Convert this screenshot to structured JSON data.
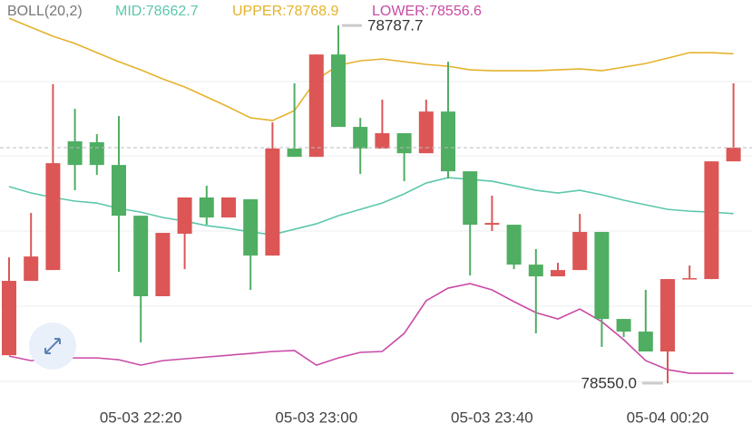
{
  "chart_data": {
    "type": "candlestick",
    "indicator": "BOLL(20,2)",
    "categories": [
      null,
      null,
      null,
      null,
      null,
      null,
      "05-03 22:20",
      null,
      null,
      null,
      null,
      null,
      null,
      null,
      "05-03 23:00",
      null,
      null,
      null,
      null,
      null,
      null,
      null,
      "05-03 23:40",
      null,
      null,
      null,
      null,
      null,
      null,
      null,
      "05-04 00:20",
      null,
      null,
      null
    ],
    "open": [
      78568.6,
      78618.0,
      78625.2,
      78710.7,
      78710.1,
      78695.0,
      78661.3,
      78607.8,
      78649.3,
      78673.4,
      78660.1,
      78672.2,
      78634.8,
      78705.9,
      78700.4,
      78768.4,
      78720.3,
      78705.9,
      78716.1,
      78702.8,
      78730.5,
      78690.8,
      78655.3,
      78655.3,
      78628.8,
      78621.0,
      78625.2,
      78650.5,
      78592.7,
      78584.3,
      78571.1,
      78619.2,
      78619.2,
      78697.4
    ],
    "high": [
      78633.6,
      78663.1,
      78748.6,
      78732.3,
      78715.5,
      78727.5,
      78661.3,
      78649.9,
      78673.4,
      78681.2,
      78673.4,
      78672.2,
      78723.3,
      78749.2,
      78768.4,
      78787.7,
      78726.3,
      78738.4,
      78716.1,
      78738.4,
      78763.6,
      78690.8,
      78674.6,
      78655.3,
      78639.1,
      78630.0,
      78662.5,
      78650.5,
      78592.7,
      78612.0,
      78619.2,
      78628.2,
      78697.4,
      78749.2
    ],
    "low": [
      78568.6,
      78618.0,
      78625.2,
      78678.2,
      78688.4,
      78624.0,
      78577.1,
      78607.8,
      78625.8,
      78655.3,
      78660.1,
      78612.0,
      78634.8,
      78700.4,
      78700.4,
      78720.3,
      78689.0,
      78705.9,
      78684.2,
      78702.8,
      78686.0,
      78621.6,
      78651.1,
      78625.8,
      78583.1,
      78621.0,
      78625.2,
      78574.1,
      78580.7,
      78571.1,
      78550.0,
      78619.2,
      78619.2,
      78697.4
    ],
    "close": [
      78618.0,
      78634.2,
      78696.2,
      78695.0,
      78695.0,
      78661.3,
      78607.8,
      78649.9,
      78673.4,
      78660.1,
      78673.4,
      78634.8,
      78705.9,
      78700.4,
      78768.4,
      78720.3,
      78705.9,
      78716.1,
      78702.8,
      78730.5,
      78690.8,
      78655.3,
      78656.5,
      78628.8,
      78621.0,
      78625.2,
      78650.5,
      78592.7,
      78584.3,
      78571.1,
      78619.2,
      78619.8,
      78697.4,
      78706.5
    ],
    "up_color": "#dc5656",
    "down_color": "#4fae62",
    "series": [
      {
        "label": "MID:78662.7",
        "color": "#5cc7ad",
        "values": [
          78680.6,
          78676.4,
          78673.4,
          78671.0,
          78669.7,
          78666.1,
          78663.7,
          78660.1,
          78657.7,
          78654.7,
          78652.9,
          78650.5,
          78648.7,
          78652.3,
          78655.9,
          78661.3,
          78665.5,
          78669.7,
          78675.8,
          78683.0,
          78686.6,
          78685.4,
          78684.2,
          78681.2,
          78678.2,
          78676.4,
          78678.2,
          78675.2,
          78671.6,
          78668.5,
          78665.5,
          78664.3,
          78663.7,
          78662.7
        ]
      },
      {
        "label": "UPPER:78768.9",
        "color": "#e5b22c",
        "values": [
          78792.5,
          78786.5,
          78780.5,
          78775.7,
          78769.6,
          78763.6,
          78758.2,
          78752.2,
          78746.8,
          78740.2,
          78733.5,
          78726.3,
          78724.5,
          78731.1,
          78751.6,
          78761.2,
          78764.2,
          78765.4,
          78763.6,
          78761.8,
          78760.6,
          78758.2,
          78757.6,
          78757.6,
          78757.6,
          78758.2,
          78758.8,
          78757.6,
          78760.0,
          78762.4,
          78766.0,
          78769.6,
          78769.6,
          78768.9
        ]
      },
      {
        "label": "LOWER:78556.6",
        "color": "#c94aa6",
        "values": [
          78568.0,
          78565.0,
          78566.2,
          78566.8,
          78566.8,
          78565.6,
          78562.0,
          78565.0,
          78566.2,
          78567.4,
          78568.6,
          78569.8,
          78571.1,
          78571.7,
          78562.0,
          78566.8,
          78570.5,
          78571.1,
          78583.1,
          78604.8,
          78613.2,
          78616.2,
          78612.0,
          78604.2,
          78596.9,
          78592.7,
          78599.3,
          78590.9,
          78578.9,
          78565.0,
          78559.0,
          78556.6,
          78556.6,
          78556.6
        ]
      }
    ],
    "max_label": "78787.7",
    "min_label": "78550.0",
    "ylim": [
      78539.8,
      78804.6
    ]
  }
}
